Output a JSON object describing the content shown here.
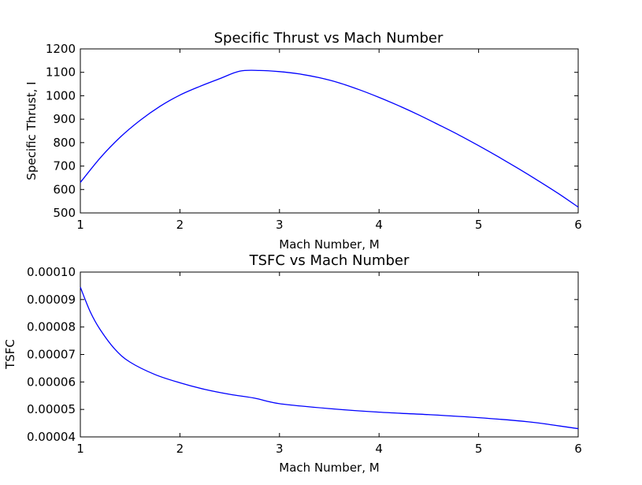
{
  "figure": {
    "background": "#ffffff"
  },
  "chart_data": [
    {
      "type": "line",
      "title": "Specific Thrust vs Mach Number",
      "xlabel": "Mach Number, M",
      "ylabel": "Specific Thrust, I",
      "xlim": [
        1,
        6
      ],
      "ylim": [
        500,
        1200
      ],
      "xticks": [
        "1",
        "2",
        "3",
        "4",
        "5",
        "6"
      ],
      "yticks": [
        "500",
        "600",
        "700",
        "800",
        "900",
        "1000",
        "1100",
        "1200"
      ],
      "grid": false,
      "series": [
        {
          "color": "#0000ff",
          "x": [
            1.0,
            1.2,
            1.4,
            1.6,
            1.8,
            2.0,
            2.2,
            2.4,
            2.6,
            2.8,
            3.0,
            3.2,
            3.4,
            3.6,
            3.8,
            4.0,
            4.2,
            4.4,
            4.6,
            4.8,
            5.0,
            5.2,
            5.4,
            5.6,
            5.8,
            6.0
          ],
          "y": [
            630,
            735,
            823,
            895,
            955,
            1003,
            1040,
            1073,
            1105,
            1108,
            1103,
            1093,
            1077,
            1055,
            1026,
            993,
            957,
            918,
            876,
            833,
            787,
            739,
            689,
            637,
            583,
            525
          ]
        }
      ]
    },
    {
      "type": "line",
      "title": "TSFC vs Mach Number",
      "xlabel": "Mach Number, M",
      "ylabel": "TSFC",
      "xlim": [
        1,
        6
      ],
      "ylim": [
        4e-05,
        0.0001
      ],
      "xticks": [
        "1",
        "2",
        "3",
        "4",
        "5",
        "6"
      ],
      "yticks": [
        "0.00004",
        "0.00005",
        "0.00006",
        "0.00007",
        "0.00008",
        "0.00009",
        "0.00010"
      ],
      "grid": false,
      "series": [
        {
          "color": "#0000ff",
          "x": [
            1.0,
            1.1,
            1.2,
            1.35,
            1.5,
            1.75,
            2.0,
            2.25,
            2.5,
            2.75,
            3.0,
            3.5,
            4.0,
            4.5,
            5.0,
            5.5,
            5.75,
            6.0
          ],
          "y": [
            9.45e-05,
            8.55e-05,
            7.9e-05,
            7.18e-05,
            6.72e-05,
            6.27e-05,
            5.97e-05,
            5.73e-05,
            5.55e-05,
            5.41e-05,
            5.21e-05,
            5.03e-05,
            4.9e-05,
            4.81e-05,
            4.7e-05,
            4.55e-05,
            4.43e-05,
            4.3e-05
          ]
        }
      ]
    }
  ]
}
